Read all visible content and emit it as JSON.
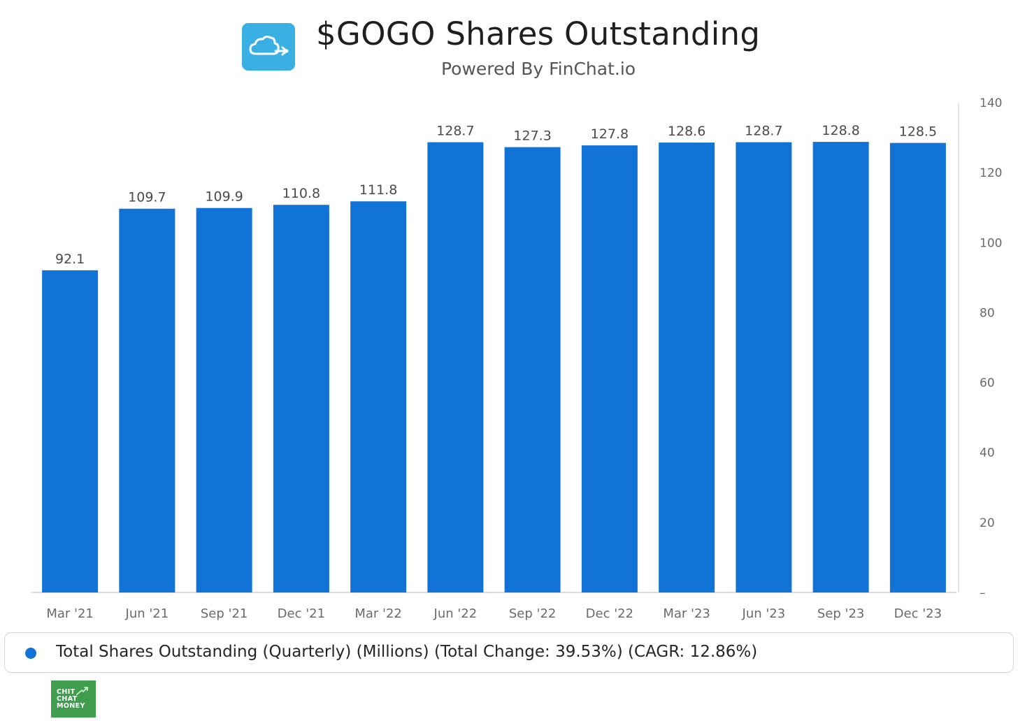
{
  "header": {
    "title": "$GOGO Shares Outstanding",
    "subtitle": "Powered By FinChat.io",
    "logo_icon": "cloud-plane-icon",
    "logo_color": "#3aafe3"
  },
  "chart_data": {
    "type": "bar",
    "categories": [
      "Mar '21",
      "Jun '21",
      "Sep '21",
      "Dec '21",
      "Mar '22",
      "Jun '22",
      "Sep '22",
      "Dec '22",
      "Mar '23",
      "Jun '23",
      "Sep '23",
      "Dec '23"
    ],
    "series": [
      {
        "name": "Total Shares Outstanding (Quarterly) (Millions) (Total Change: 39.53%) (CAGR: 12.86%)",
        "values": [
          92.1,
          109.7,
          109.9,
          110.8,
          111.8,
          128.7,
          127.3,
          127.8,
          128.6,
          128.7,
          128.8,
          128.5
        ],
        "value_labels": [
          "92.1",
          "109.7",
          "109.9",
          "110.8",
          "111.8",
          "128.7",
          "127.3",
          "127.8",
          "128.6",
          "128.7",
          "128.8",
          "128.5"
        ],
        "color": "#1273d7"
      }
    ],
    "ylim": [
      0,
      140
    ],
    "yaxis_position": "right",
    "yticks": [
      "–",
      "20",
      "40",
      "60",
      "80",
      "100",
      "120",
      "140"
    ],
    "grid": false,
    "legend_position": "bottom"
  },
  "legend": {
    "label": "Total Shares Outstanding (Quarterly) (Millions) (Total Change: 39.53%) (CAGR: 12.86%)",
    "color": "#1273d7"
  },
  "brand": {
    "text": "CHIT\nCHAT\nMONEY",
    "color": "#3f9e4e",
    "icon": "trend-arrow-icon"
  }
}
